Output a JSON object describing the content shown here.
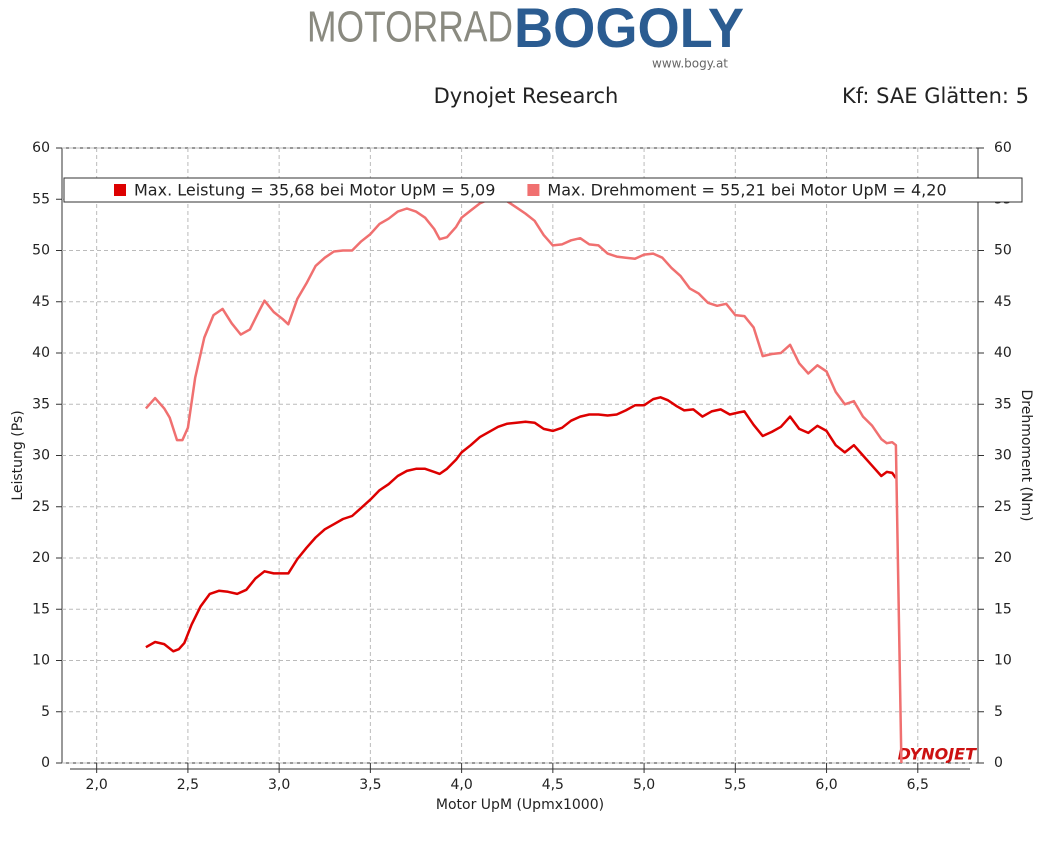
{
  "header": {
    "logo_left": "MOTORRAD",
    "logo_right": "BOGOLY",
    "logo_url": "www.bogy.at",
    "subtitle": "Dynojet Research",
    "settings": "Kf: SAE Glätten: 5"
  },
  "chart_data": {
    "type": "line",
    "xlabel": "Motor UpM (Upmx1000)",
    "ylabel": "Leistung (Ps)",
    "y2label": "Drehmoment (Nm)",
    "watermark": "DYNOJET",
    "xlim": [
      1.81,
      6.83
    ],
    "ylim": [
      0,
      60
    ],
    "y2lim": [
      0,
      60
    ],
    "xticks": [
      {
        "value": 2,
        "label": "2,0"
      },
      {
        "value": 2.5,
        "label": "2,5"
      },
      {
        "value": 3,
        "label": "3,0"
      },
      {
        "value": 3.5,
        "label": "3,5"
      },
      {
        "value": 4,
        "label": "4,0"
      },
      {
        "value": 4.5,
        "label": "4,5"
      },
      {
        "value": 5,
        "label": "5,0"
      },
      {
        "value": 5.5,
        "label": "5,5"
      },
      {
        "value": 6,
        "label": "6,0"
      },
      {
        "value": 6.5,
        "label": "6,5"
      }
    ],
    "yticks": [
      0,
      5,
      10,
      15,
      20,
      25,
      30,
      35,
      40,
      45,
      50,
      55,
      60
    ],
    "y2ticks": [
      0,
      5,
      10,
      15,
      20,
      25,
      30,
      35,
      40,
      45,
      50,
      55,
      60
    ],
    "grid": true,
    "legend": "top",
    "series": [
      {
        "name": "Max. Leistung = 35,68 bei Motor UpM = 5,09",
        "color": "#dd0000",
        "axis": "y",
        "x": [
          2.27,
          2.32,
          2.37,
          2.42,
          2.45,
          2.48,
          2.52,
          2.57,
          2.62,
          2.67,
          2.72,
          2.77,
          2.82,
          2.87,
          2.92,
          2.97,
          3.05,
          3.1,
          3.15,
          3.2,
          3.25,
          3.3,
          3.35,
          3.4,
          3.45,
          3.5,
          3.55,
          3.6,
          3.65,
          3.7,
          3.75,
          3.8,
          3.85,
          3.88,
          3.92,
          3.97,
          4.0,
          4.05,
          4.1,
          4.15,
          4.2,
          4.25,
          4.3,
          4.35,
          4.4,
          4.45,
          4.5,
          4.55,
          4.6,
          4.65,
          4.7,
          4.75,
          4.8,
          4.85,
          4.9,
          4.95,
          5.0,
          5.05,
          5.09,
          5.13,
          5.18,
          5.22,
          5.27,
          5.32,
          5.37,
          5.42,
          5.47,
          5.52,
          5.55,
          5.6,
          5.65,
          5.7,
          5.75,
          5.8,
          5.85,
          5.9,
          5.95,
          6.0,
          6.05,
          6.1,
          6.15,
          6.2,
          6.25,
          6.3,
          6.33,
          6.36,
          6.38
        ],
        "values": [
          11.3,
          11.8,
          11.6,
          10.9,
          11.1,
          11.7,
          13.5,
          15.3,
          16.5,
          16.8,
          16.7,
          16.5,
          16.9,
          18.0,
          18.7,
          18.5,
          18.5,
          19.9,
          21.0,
          22.0,
          22.8,
          23.3,
          23.8,
          24.1,
          24.9,
          25.7,
          26.6,
          27.2,
          28.0,
          28.5,
          28.7,
          28.7,
          28.4,
          28.2,
          28.7,
          29.6,
          30.3,
          31.0,
          31.8,
          32.3,
          32.8,
          33.1,
          33.2,
          33.3,
          33.2,
          32.6,
          32.4,
          32.7,
          33.4,
          33.8,
          34.0,
          34.0,
          33.9,
          34.0,
          34.4,
          34.9,
          34.9,
          35.5,
          35.68,
          35.4,
          34.8,
          34.4,
          34.5,
          33.8,
          34.3,
          34.5,
          34.0,
          34.2,
          34.3,
          33.0,
          31.9,
          32.3,
          32.8,
          33.8,
          32.6,
          32.2,
          32.9,
          32.4,
          31.0,
          30.3,
          31.0,
          30.0,
          29.0,
          28.0,
          28.4,
          28.3,
          27.8
        ]
      },
      {
        "name": "Max. Drehmoment = 55,21 bei Motor UpM = 4,20",
        "color": "#f07070",
        "axis": "y2",
        "x": [
          2.27,
          2.32,
          2.37,
          2.4,
          2.44,
          2.47,
          2.5,
          2.54,
          2.59,
          2.64,
          2.69,
          2.74,
          2.79,
          2.84,
          2.89,
          2.92,
          2.97,
          3.02,
          3.05,
          3.1,
          3.15,
          3.2,
          3.25,
          3.3,
          3.35,
          3.4,
          3.45,
          3.5,
          3.55,
          3.6,
          3.65,
          3.7,
          3.75,
          3.8,
          3.85,
          3.88,
          3.92,
          3.97,
          4.0,
          4.05,
          4.1,
          4.15,
          4.2,
          4.25,
          4.3,
          4.35,
          4.4,
          4.45,
          4.5,
          4.55,
          4.6,
          4.65,
          4.7,
          4.75,
          4.8,
          4.85,
          4.9,
          4.95,
          5.0,
          5.05,
          5.1,
          5.15,
          5.2,
          5.25,
          5.3,
          5.35,
          5.4,
          5.45,
          5.5,
          5.55,
          5.6,
          5.65,
          5.7,
          5.75,
          5.8,
          5.85,
          5.9,
          5.95,
          6.0,
          6.05,
          6.1,
          6.15,
          6.2,
          6.25,
          6.3,
          6.33,
          6.36,
          6.38,
          6.41
        ],
        "values": [
          34.6,
          35.6,
          34.6,
          33.7,
          31.5,
          31.5,
          32.7,
          37.6,
          41.5,
          43.7,
          44.3,
          42.9,
          41.8,
          42.3,
          44.1,
          45.1,
          44.0,
          43.3,
          42.8,
          45.3,
          46.8,
          48.5,
          49.3,
          49.9,
          50.0,
          50.0,
          50.9,
          51.6,
          52.6,
          53.1,
          53.8,
          54.1,
          53.8,
          53.2,
          52.1,
          51.1,
          51.3,
          52.3,
          53.2,
          53.9,
          54.6,
          55.0,
          55.21,
          54.8,
          54.2,
          53.6,
          52.9,
          51.5,
          50.5,
          50.6,
          51.0,
          51.2,
          50.6,
          50.5,
          49.7,
          49.4,
          49.3,
          49.2,
          49.6,
          49.7,
          49.3,
          48.3,
          47.5,
          46.3,
          45.8,
          44.9,
          44.6,
          44.8,
          43.7,
          43.6,
          42.5,
          39.7,
          39.9,
          40.0,
          40.8,
          39.0,
          38.0,
          38.8,
          38.2,
          36.2,
          35.0,
          35.3,
          33.8,
          32.9,
          31.6,
          31.2,
          31.3,
          31.0,
          0
        ]
      }
    ]
  }
}
